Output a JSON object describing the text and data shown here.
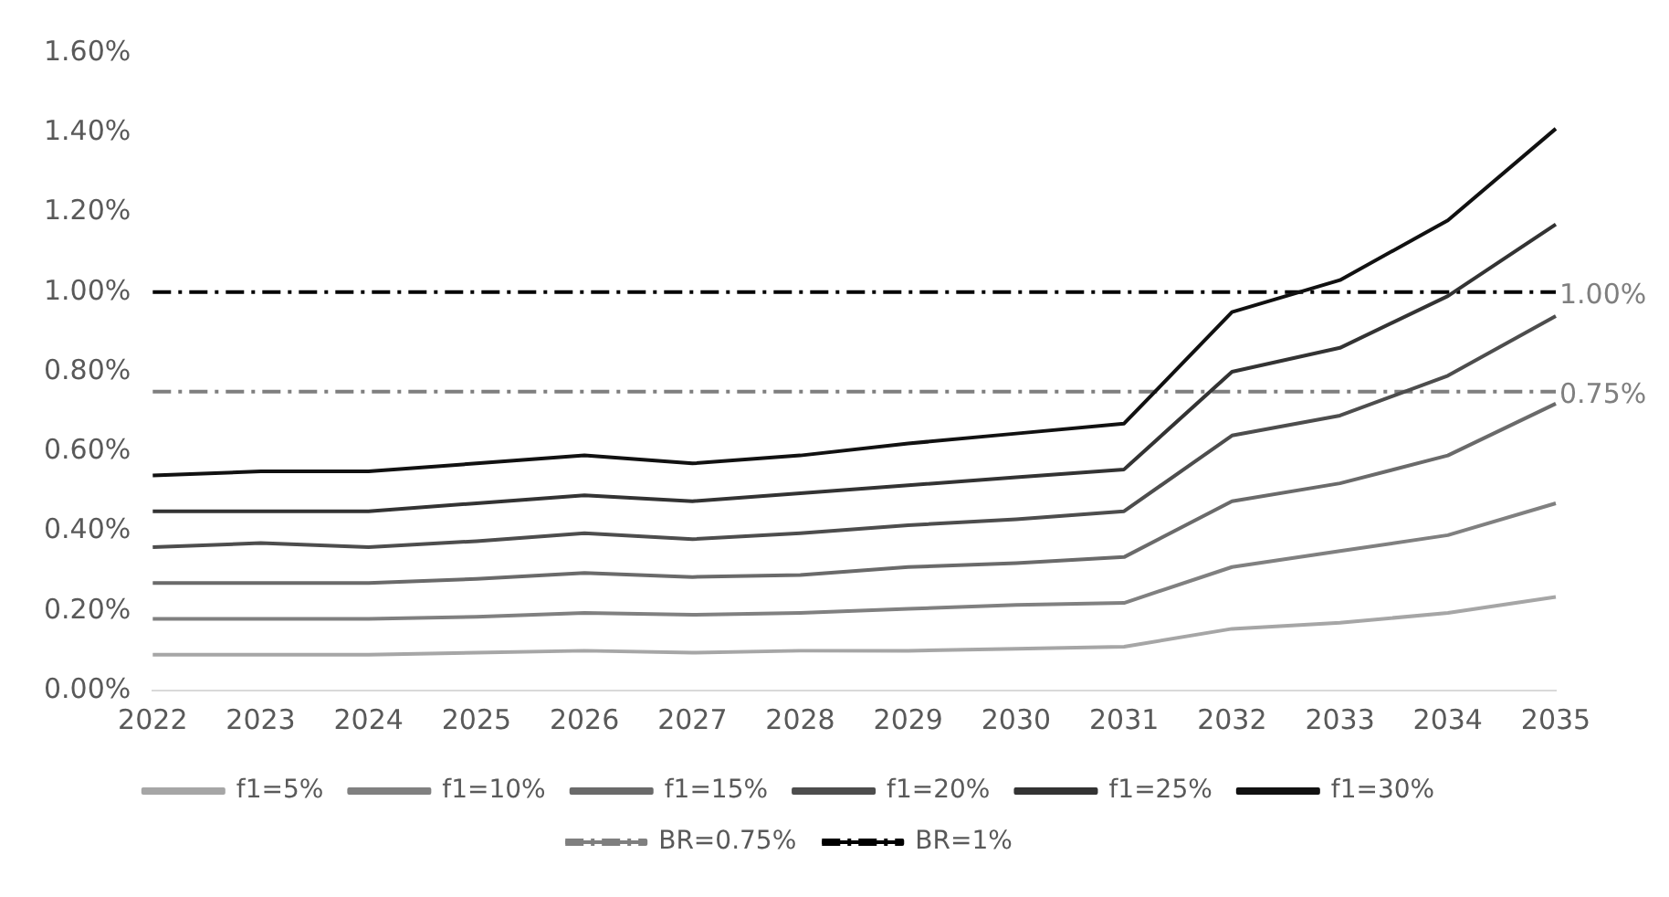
{
  "chart_data": {
    "type": "line",
    "categories": [
      "2022",
      "2023",
      "2024",
      "2025",
      "2026",
      "2027",
      "2028",
      "2029",
      "2030",
      "2031",
      "2032",
      "2033",
      "2034",
      "2035"
    ],
    "series": [
      {
        "name": "f1=5%",
        "color": "#a6a6a6",
        "values": [
          0.09,
          0.09,
          0.09,
          0.095,
          0.1,
          0.095,
          0.1,
          0.1,
          0.105,
          0.11,
          0.155,
          0.17,
          0.195,
          0.235
        ]
      },
      {
        "name": "f1=10%",
        "color": "#808080",
        "values": [
          0.18,
          0.18,
          0.18,
          0.185,
          0.195,
          0.19,
          0.195,
          0.205,
          0.215,
          0.22,
          0.31,
          0.35,
          0.39,
          0.47
        ]
      },
      {
        "name": "f1=15%",
        "color": "#6a6a6a",
        "values": [
          0.27,
          0.27,
          0.27,
          0.28,
          0.295,
          0.285,
          0.29,
          0.31,
          0.32,
          0.335,
          0.475,
          0.52,
          0.59,
          0.72
        ]
      },
      {
        "name": "f1=20%",
        "color": "#4d4d4d",
        "values": [
          0.36,
          0.37,
          0.36,
          0.375,
          0.395,
          0.38,
          0.395,
          0.415,
          0.43,
          0.45,
          0.64,
          0.69,
          0.79,
          0.94
        ]
      },
      {
        "name": "f1=25%",
        "color": "#333333",
        "values": [
          0.45,
          0.45,
          0.45,
          0.47,
          0.49,
          0.475,
          0.495,
          0.515,
          0.535,
          0.555,
          0.8,
          0.86,
          0.99,
          1.17
        ]
      },
      {
        "name": "f1=30%",
        "color": "#111111",
        "values": [
          0.54,
          0.55,
          0.55,
          0.57,
          0.59,
          0.57,
          0.59,
          0.62,
          0.645,
          0.67,
          0.95,
          1.03,
          1.18,
          1.41
        ]
      },
      {
        "name": "BR=0.75%",
        "color": "#7f7f7f",
        "line_style": "dashed",
        "values": [
          0.75,
          0.75,
          0.75,
          0.75,
          0.75,
          0.75,
          0.75,
          0.75,
          0.75,
          0.75,
          0.75,
          0.75,
          0.75,
          0.75
        ],
        "value_labels": [
          null,
          null,
          null,
          null,
          null,
          null,
          null,
          null,
          null,
          null,
          null,
          null,
          null,
          "0.75%"
        ]
      },
      {
        "name": "BR=1%",
        "color": "#000000",
        "line_style": "dashed",
        "values": [
          1,
          1,
          1,
          1,
          1,
          1,
          1,
          1,
          1,
          1,
          1,
          1,
          1,
          1
        ],
        "value_labels": [
          null,
          null,
          null,
          null,
          null,
          null,
          null,
          null,
          null,
          null,
          null,
          null,
          null,
          "1.00%"
        ]
      }
    ],
    "ylim": [
      0,
      1.6
    ],
    "yticks": [
      {
        "value": 0,
        "label": "0.00%"
      },
      {
        "value": 0.2,
        "label": "0.20%"
      },
      {
        "value": 0.4,
        "label": "0.40%"
      },
      {
        "value": 0.6,
        "label": "0.60%"
      },
      {
        "value": 0.8,
        "label": "0.80%"
      },
      {
        "value": 1,
        "label": "1.00%"
      },
      {
        "value": 1.2,
        "label": "1.20%"
      },
      {
        "value": 1.4,
        "label": "1.40%"
      },
      {
        "value": 1.6,
        "label": "1.60%"
      }
    ],
    "grid": false,
    "legend": "bottom",
    "marker": "none",
    "line_style": "solid"
  }
}
